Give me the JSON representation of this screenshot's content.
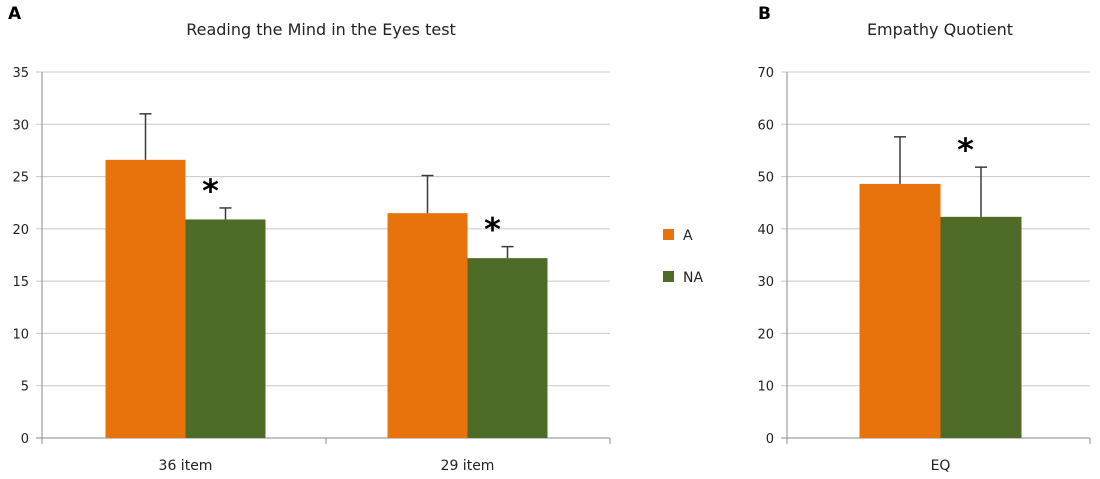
{
  "panels": [
    {
      "label": "A",
      "title": "Reading the Mind in the Eyes test"
    },
    {
      "label": "B",
      "title": "Empathy Quotient"
    }
  ],
  "colors": {
    "A": "#E8720C",
    "NA": "#4F6B28"
  },
  "legend": [
    {
      "name": "A",
      "color": "#E8720C"
    },
    {
      "name": "NA",
      "color": "#4F6B28"
    }
  ],
  "chart_data": [
    {
      "type": "bar",
      "title": "Reading the Mind in the Eyes test",
      "categories": [
        "36 item",
        "29 item"
      ],
      "series": [
        {
          "name": "A",
          "values": [
            26.6,
            21.5
          ],
          "errors": [
            4.4,
            3.6
          ]
        },
        {
          "name": "NA",
          "values": [
            20.9,
            17.2
          ],
          "errors": [
            1.1,
            1.1
          ]
        }
      ],
      "ylim": [
        0,
        35
      ],
      "yticks": [
        0,
        5,
        10,
        15,
        20,
        25,
        30,
        35
      ],
      "grid": true,
      "annotations": [
        {
          "category": "36 item",
          "text": "*"
        },
        {
          "category": "29 item",
          "text": "*"
        }
      ]
    },
    {
      "type": "bar",
      "title": "Empathy Quotient",
      "categories": [
        "EQ"
      ],
      "series": [
        {
          "name": "A",
          "values": [
            48.6
          ],
          "errors": [
            9.0
          ]
        },
        {
          "name": "NA",
          "values": [
            42.3
          ],
          "errors": [
            9.5
          ]
        }
      ],
      "ylim": [
        0,
        70
      ],
      "yticks": [
        0,
        10,
        20,
        30,
        40,
        50,
        60,
        70
      ],
      "grid": true,
      "annotations": [
        {
          "category": "EQ",
          "text": "*"
        }
      ]
    }
  ]
}
